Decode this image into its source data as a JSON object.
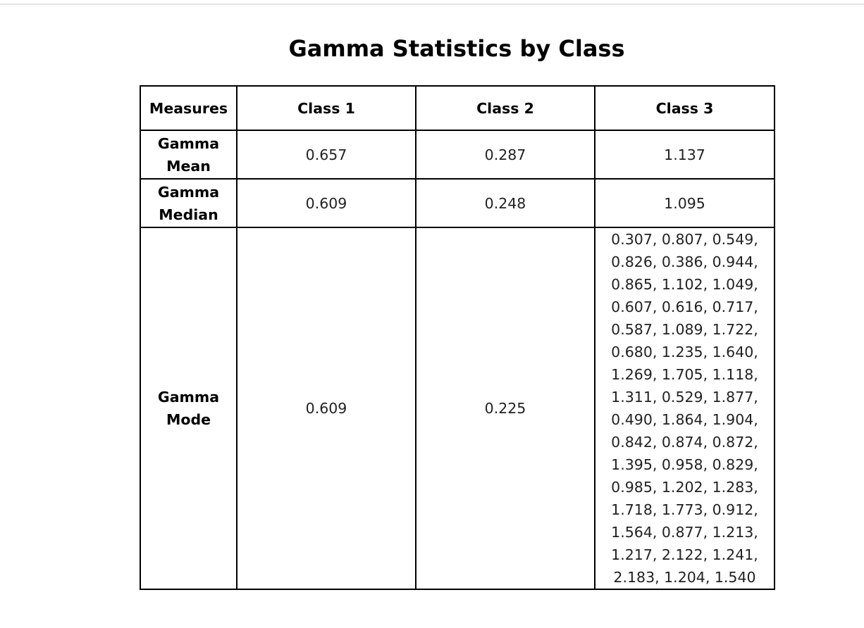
{
  "title": "Gamma Statistics by Class",
  "table": {
    "headers": [
      "Measures",
      "Class 1",
      "Class 2",
      "Class 3"
    ],
    "rows": [
      {
        "measure": "Gamma Mean",
        "values": [
          "0.657",
          "0.287",
          "1.137"
        ]
      },
      {
        "measure": "Gamma Median",
        "values": [
          "0.609",
          "0.248",
          "1.095"
        ]
      },
      {
        "measure": "Gamma Mode",
        "values": [
          "0.609",
          "0.225",
          "0.307, 0.807, 0.549, 0.826, 0.386, 0.944, 0.865, 1.102, 1.049, 0.607, 0.616, 0.717, 0.587, 1.089, 1.722, 0.680, 1.235, 1.640, 1.269, 1.705, 1.118, 1.311, 0.529, 1.877, 0.490, 1.864, 1.904, 0.842, 0.874, 0.872, 1.395, 0.958, 0.829, 0.985, 1.202, 1.283, 1.718, 1.773, 0.912, 1.564, 0.877, 1.213, 1.217, 2.122, 1.241, 2.183, 1.204, 1.540"
        ]
      }
    ]
  }
}
